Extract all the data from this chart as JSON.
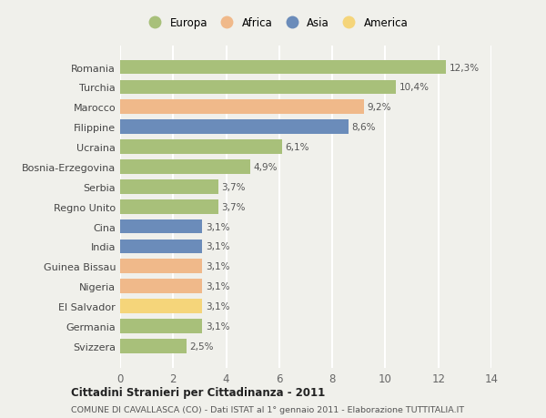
{
  "categories": [
    "Romania",
    "Turchia",
    "Marocco",
    "Filippine",
    "Ucraina",
    "Bosnia-Erzegovina",
    "Serbia",
    "Regno Unito",
    "Cina",
    "India",
    "Guinea Bissau",
    "Nigeria",
    "El Salvador",
    "Germania",
    "Svizzera"
  ],
  "values": [
    12.3,
    10.4,
    9.2,
    8.6,
    6.1,
    4.9,
    3.7,
    3.7,
    3.1,
    3.1,
    3.1,
    3.1,
    3.1,
    3.1,
    2.5
  ],
  "labels": [
    "12,3%",
    "10,4%",
    "9,2%",
    "8,6%",
    "6,1%",
    "4,9%",
    "3,7%",
    "3,7%",
    "3,1%",
    "3,1%",
    "3,1%",
    "3,1%",
    "3,1%",
    "3,1%",
    "2,5%"
  ],
  "continents": [
    "Europa",
    "Europa",
    "Africa",
    "Asia",
    "Europa",
    "Europa",
    "Europa",
    "Europa",
    "Asia",
    "Asia",
    "Africa",
    "Africa",
    "America",
    "Europa",
    "Europa"
  ],
  "continent_colors": {
    "Europa": "#a8c07a",
    "Africa": "#f0b98a",
    "Asia": "#6b8cba",
    "America": "#f5d57a"
  },
  "legend_order": [
    "Europa",
    "Africa",
    "Asia",
    "America"
  ],
  "title": "Cittadini Stranieri per Cittadinanza - 2011",
  "subtitle": "COMUNE DI CAVALLASCA (CO) - Dati ISTAT al 1° gennaio 2011 - Elaborazione TUTTITALIA.IT",
  "xlim": [
    0,
    14
  ],
  "xticks": [
    0,
    2,
    4,
    6,
    8,
    10,
    12,
    14
  ],
  "background_color": "#f0f0eb",
  "grid_color": "#ffffff",
  "bar_height": 0.72
}
